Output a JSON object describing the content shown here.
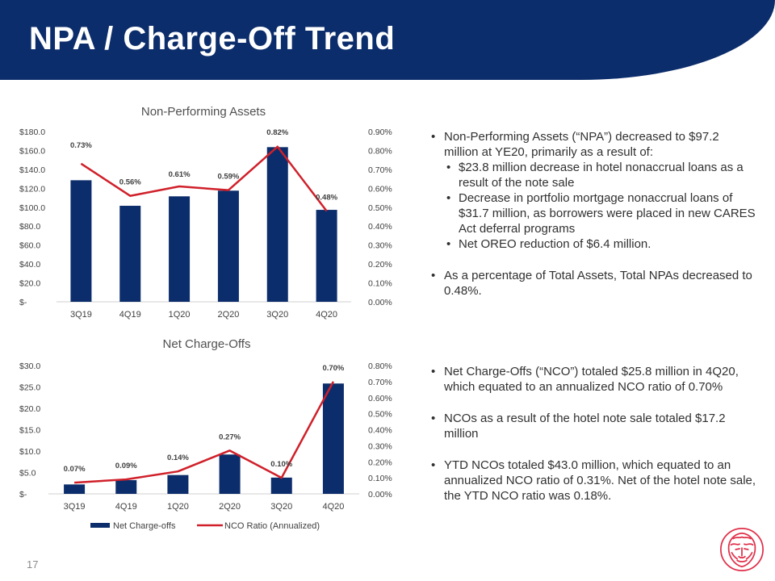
{
  "header": {
    "title": "NPA / Charge-Off Trend"
  },
  "page_number": "17",
  "colors": {
    "navy": "#0c2d6b",
    "bar": "#0c2d6b",
    "line": "#d0202a",
    "logo": "#e0304a"
  },
  "logo_icon": "lion-crest-icon",
  "npa_bullets": [
    {
      "level": 0,
      "text": "Non-Performing Assets (“NPA”) decreased to $97.2 million at YE20, primarily as a result of:"
    },
    {
      "level": 1,
      "text": "$23.8 million decrease in hotel nonaccrual loans as a result of the note sale"
    },
    {
      "level": 1,
      "text": "Decrease in portfolio mortgage nonaccrual loans of $31.7 million, as borrowers were placed in new CARES Act deferral programs"
    },
    {
      "level": 1,
      "text": "Net OREO reduction of $6.4 million."
    },
    {
      "level": 0,
      "text": "As a percentage of Total Assets, Total NPAs decreased to 0.48%."
    }
  ],
  "nco_bullets": [
    {
      "level": 0,
      "text": "Net Charge-Offs (“NCO”) totaled $25.8 million in 4Q20, which equated to an annualized NCO ratio of 0.70%"
    },
    {
      "level": 0,
      "text": "NCOs as a result of the hotel note sale totaled $17.2 million"
    },
    {
      "level": 0,
      "text": "YTD NCOs totaled $43.0 million, which equated to an annualized NCO ratio of 0.31%.  Net of the hotel note sale, the YTD NCO ratio was 0.18%."
    }
  ],
  "chart_data": [
    {
      "type": "bar",
      "title": "Non-Performing Assets",
      "categories": [
        "3Q19",
        "4Q19",
        "1Q20",
        "2Q20",
        "3Q20",
        "4Q20"
      ],
      "series": [
        {
          "values": [
            128.5,
            101.5,
            111.5,
            117.5,
            163.5,
            97.2
          ]
        },
        {
          "type": "line",
          "values": [
            0.73,
            0.56,
            0.61,
            0.59,
            0.82,
            0.48
          ]
        }
      ],
      "data_labels": [
        "0.73%",
        "0.56%",
        "0.61%",
        "0.59%",
        "0.82%",
        "0.48%"
      ],
      "y_ticks": [
        "$-",
        "$20.0",
        "$40.0",
        "$60.0",
        "$80.0",
        "$100.0",
        "$120.0",
        "$140.0",
        "$160.0",
        "$180.0"
      ],
      "y2_ticks": [
        "0.00%",
        "0.10%",
        "0.20%",
        "0.30%",
        "0.40%",
        "0.50%",
        "0.60%",
        "0.70%",
        "0.80%",
        "0.90%"
      ],
      "ylim": [
        0,
        180
      ],
      "y2lim": [
        0,
        0.9
      ],
      "grid": false,
      "legend": "none"
    },
    {
      "type": "bar",
      "title": "Net Charge-Offs",
      "categories": [
        "3Q19",
        "4Q19",
        "1Q20",
        "2Q20",
        "3Q20",
        "4Q20"
      ],
      "series": [
        {
          "name": "Net Charge-offs",
          "values": [
            2.2,
            3.2,
            4.4,
            9.2,
            3.8,
            25.8
          ]
        },
        {
          "name": "NCO Ratio (Annualized)",
          "type": "line",
          "values": [
            0.07,
            0.09,
            0.14,
            0.27,
            0.1,
            0.7
          ]
        }
      ],
      "data_labels": [
        "0.07%",
        "0.09%",
        "0.14%",
        "0.27%",
        "0.10%",
        "0.70%"
      ],
      "y_ticks": [
        "$-",
        "$5.0",
        "$10.0",
        "$15.0",
        "$20.0",
        "$25.0",
        "$30.0"
      ],
      "y2_ticks": [
        "0.00%",
        "0.10%",
        "0.20%",
        "0.30%",
        "0.40%",
        "0.50%",
        "0.60%",
        "0.70%",
        "0.80%"
      ],
      "ylim": [
        0,
        30
      ],
      "y2lim": [
        0,
        0.8
      ],
      "grid": false,
      "legend": "bottom"
    }
  ]
}
